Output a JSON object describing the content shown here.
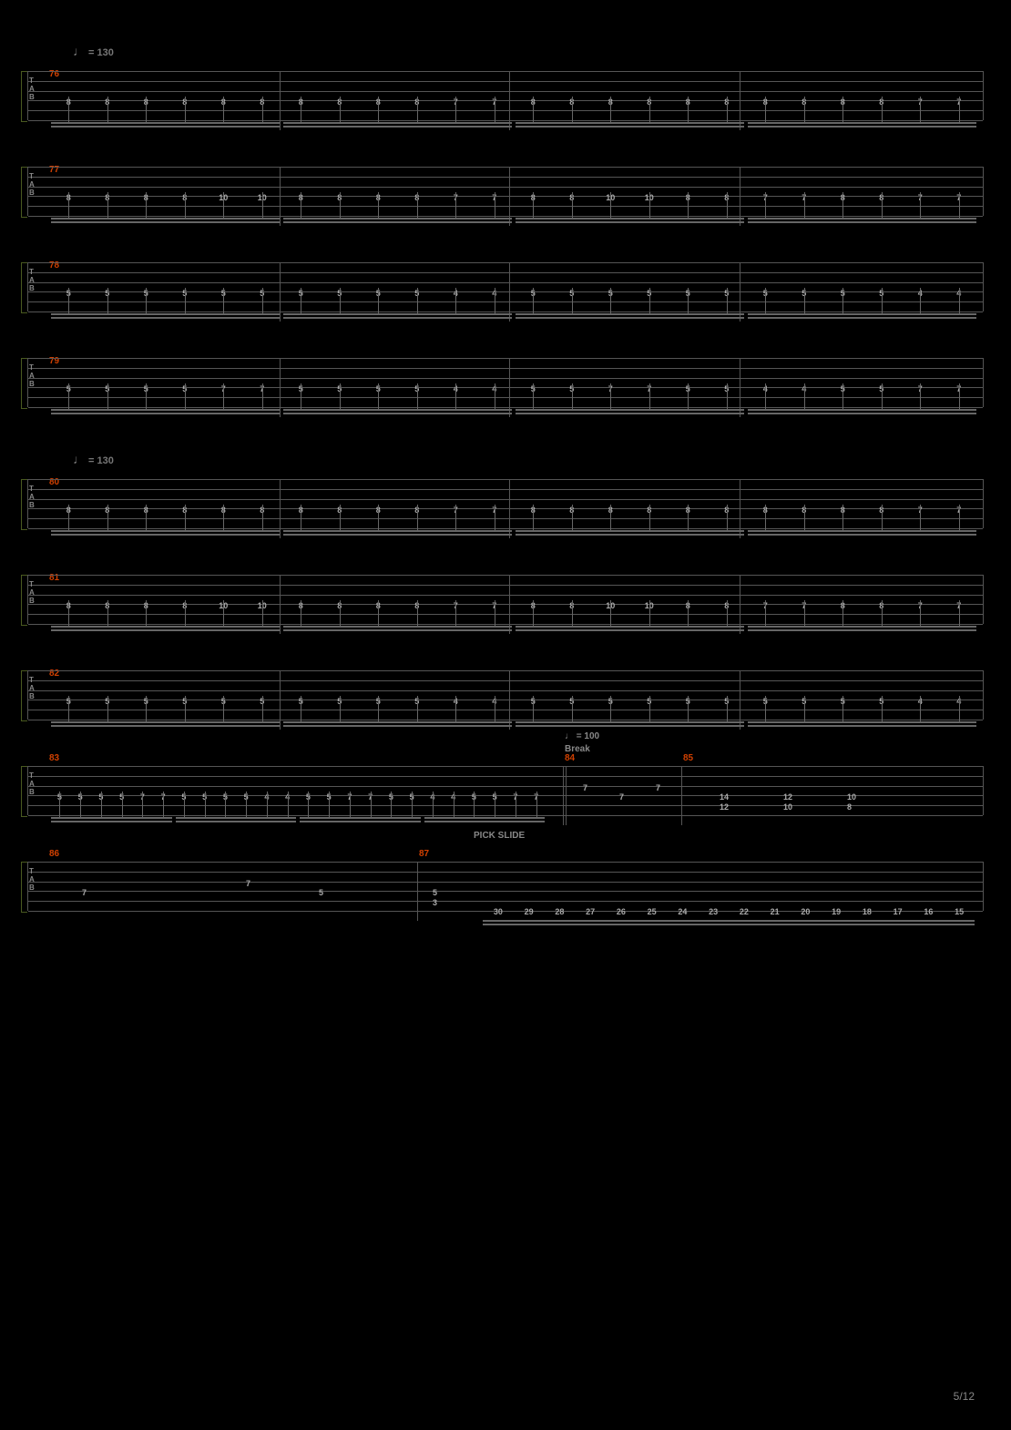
{
  "tempo1": "= 130",
  "tempo2": "= 130",
  "tempo3": "= 100",
  "break_label": "Break",
  "pick_slide": "PICK SLIDE",
  "page_number": "5/12",
  "staff_lines": 6,
  "colors": {
    "bg": "#000",
    "line": "#555",
    "accent": "#d04000",
    "text": "#888",
    "note": "#aaa",
    "bracket": "#4a5a20"
  },
  "staves": [
    {
      "measures": [
        "76"
      ],
      "string": 3,
      "groups": [
        [
          "8",
          "8",
          "8",
          "8",
          "8",
          "8"
        ],
        [
          "8",
          "8",
          "8",
          "8",
          "7",
          "7"
        ],
        [
          "8",
          "8",
          "8",
          "8",
          "8",
          "8"
        ],
        [
          "8",
          "8",
          "8",
          "8",
          "7",
          "7"
        ]
      ]
    },
    {
      "measures": [
        "77"
      ],
      "string": 3,
      "groups": [
        [
          "8",
          "8",
          "8",
          "8",
          "10",
          "10"
        ],
        [
          "8",
          "8",
          "8",
          "8",
          "7",
          "7"
        ],
        [
          "8",
          "8",
          "10",
          "10",
          "8",
          "8"
        ],
        [
          "7",
          "7",
          "8",
          "8",
          "7",
          "7"
        ]
      ]
    },
    {
      "measures": [
        "78"
      ],
      "string": 3,
      "groups": [
        [
          "5",
          "5",
          "5",
          "5",
          "5",
          "5"
        ],
        [
          "5",
          "5",
          "5",
          "5",
          "4",
          "4"
        ],
        [
          "5",
          "5",
          "5",
          "5",
          "5",
          "5"
        ],
        [
          "5",
          "5",
          "5",
          "5",
          "4",
          "4"
        ]
      ]
    },
    {
      "measures": [
        "79"
      ],
      "string": 3,
      "groups": [
        [
          "5",
          "5",
          "5",
          "5",
          "7",
          "7"
        ],
        [
          "5",
          "5",
          "5",
          "5",
          "4",
          "4"
        ],
        [
          "5",
          "5",
          "7",
          "7",
          "5",
          "5"
        ],
        [
          "4",
          "4",
          "5",
          "5",
          "7",
          "7"
        ]
      ]
    },
    {
      "measures": [
        "80"
      ],
      "tempo": true,
      "string": 3,
      "groups": [
        [
          "8",
          "8",
          "8",
          "8",
          "8",
          "8"
        ],
        [
          "8",
          "8",
          "8",
          "8",
          "7",
          "7"
        ],
        [
          "8",
          "8",
          "8",
          "8",
          "8",
          "8"
        ],
        [
          "8",
          "8",
          "8",
          "8",
          "7",
          "7"
        ]
      ]
    },
    {
      "measures": [
        "81"
      ],
      "string": 3,
      "groups": [
        [
          "8",
          "8",
          "8",
          "8",
          "10",
          "10"
        ],
        [
          "8",
          "8",
          "8",
          "8",
          "7",
          "7"
        ],
        [
          "8",
          "8",
          "10",
          "10",
          "8",
          "8"
        ],
        [
          "7",
          "7",
          "8",
          "8",
          "7",
          "7"
        ]
      ]
    },
    {
      "measures": [
        "82"
      ],
      "string": 3,
      "groups": [
        [
          "5",
          "5",
          "5",
          "5",
          "5",
          "5"
        ],
        [
          "5",
          "5",
          "5",
          "5",
          "4",
          "4"
        ],
        [
          "5",
          "5",
          "5",
          "5",
          "5",
          "5"
        ],
        [
          "5",
          "5",
          "5",
          "5",
          "4",
          "4"
        ]
      ]
    },
    {
      "measures": [
        "83",
        "84",
        "85"
      ],
      "string": 3,
      "complex": true,
      "main_groups": [
        [
          "5",
          "5",
          "5",
          "5",
          "7",
          "7"
        ],
        [
          "5",
          "5",
          "5",
          "5",
          "4",
          "4"
        ],
        [
          "5",
          "5",
          "7",
          "7",
          "5",
          "5"
        ],
        [
          "4",
          "4",
          "5",
          "5",
          "7",
          "7"
        ]
      ],
      "m84": [
        {
          "s": 2,
          "v": "7"
        },
        {
          "s": 3,
          "v": "7"
        },
        {
          "s": 2,
          "v": "7"
        }
      ],
      "m85": [
        [
          "14",
          "12"
        ],
        [
          "12",
          "10"
        ],
        [
          "10",
          "8"
        ]
      ]
    },
    {
      "measures": [
        "86",
        "87"
      ],
      "complex2": true,
      "m86": [
        {
          "s": 3,
          "v": "7"
        },
        {
          "s": 2,
          "v": "7"
        },
        {
          "s": 3,
          "v": "5"
        }
      ],
      "m87_chord": [
        "5",
        "3"
      ],
      "slide": [
        "30",
        "29",
        "28",
        "27",
        "26",
        "25",
        "24",
        "23",
        "22",
        "21",
        "20",
        "19",
        "18",
        "17",
        "16",
        "15"
      ]
    }
  ]
}
